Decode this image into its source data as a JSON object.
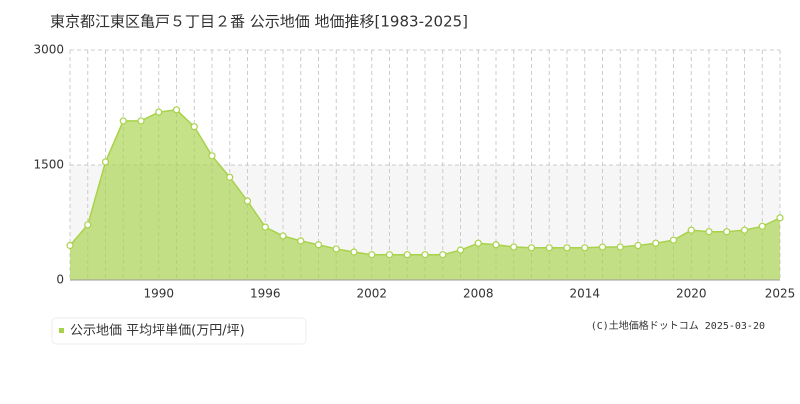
{
  "chart_data": {
    "type": "area",
    "title": "東京都江東区亀戸５丁目２番 公示地価 地価推移[1983-2025]",
    "x": [
      1985,
      1986,
      1987,
      1988,
      1989,
      1990,
      1991,
      1992,
      1993,
      1994,
      1995,
      1996,
      1997,
      1998,
      1999,
      2000,
      2001,
      2002,
      2003,
      2004,
      2005,
      2006,
      2007,
      2008,
      2009,
      2010,
      2011,
      2012,
      2013,
      2014,
      2015,
      2016,
      2017,
      2018,
      2019,
      2020,
      2021,
      2022,
      2023,
      2024,
      2025
    ],
    "series": [
      {
        "name": "公示地価 平均坪単価(万円/坪)",
        "color": "#a8d24a",
        "values": [
          450,
          720,
          1540,
          2075,
          2075,
          2190,
          2220,
          2000,
          1620,
          1340,
          1030,
          690,
          575,
          510,
          460,
          405,
          365,
          330,
          330,
          330,
          330,
          330,
          390,
          480,
          460,
          430,
          420,
          420,
          420,
          420,
          430,
          430,
          450,
          480,
          520,
          650,
          630,
          630,
          650,
          700,
          810
        ]
      }
    ],
    "xlim": [
      1985,
      2025
    ],
    "xticks": [
      1990,
      1996,
      2002,
      2008,
      2014,
      2020,
      2025
    ],
    "ylim": [
      0,
      3000
    ],
    "yticks": [
      0,
      1500,
      3000
    ],
    "grid": true,
    "credit": "(C)土地価格ドットコム 2025-03-20"
  }
}
